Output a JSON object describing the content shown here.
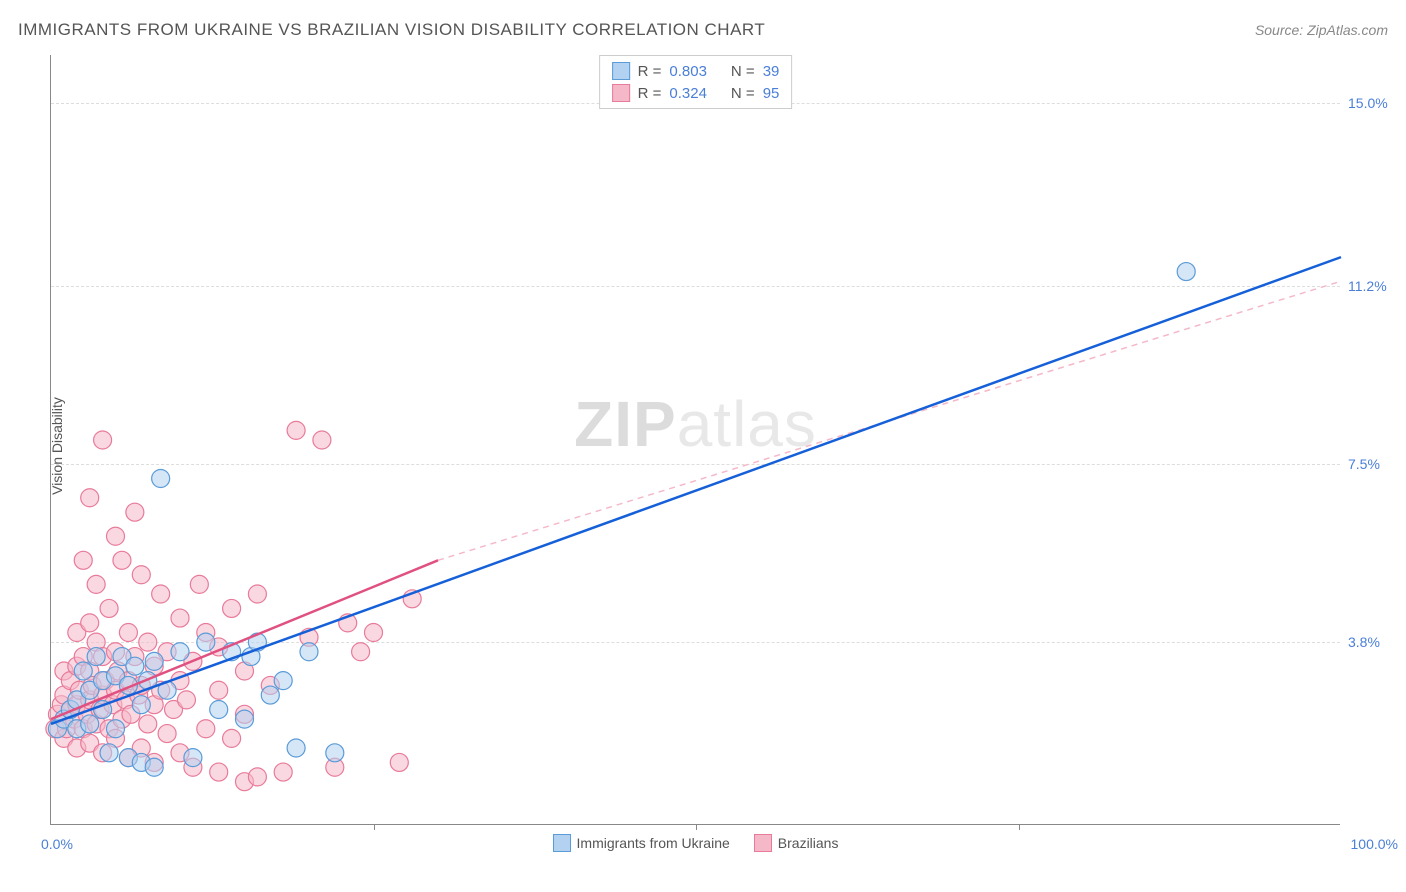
{
  "title": "IMMIGRANTS FROM UKRAINE VS BRAZILIAN VISION DISABILITY CORRELATION CHART",
  "source": "Source: ZipAtlas.com",
  "ylabel": "Vision Disability",
  "watermark_bold": "ZIP",
  "watermark_rest": "atlas",
  "chart": {
    "type": "scatter",
    "xlim": [
      0,
      100
    ],
    "ylim": [
      0,
      16
    ],
    "x_min_label": "0.0%",
    "x_max_label": "100.0%",
    "y_gridlines": [
      3.8,
      7.5,
      11.2,
      15.0
    ],
    "y_tick_labels": [
      "3.8%",
      "7.5%",
      "11.2%",
      "15.0%"
    ],
    "x_tick_marks": [
      25,
      50,
      75
    ],
    "background_color": "#ffffff",
    "grid_color": "#dddddd",
    "axis_color": "#888888",
    "tick_color": "#4a7fd8",
    "point_radius": 9,
    "series": [
      {
        "name": "Immigrants from Ukraine",
        "fill": "#b3d1f0",
        "stroke": "#5a9bd8",
        "fill_opacity": 0.55,
        "R_label": "R =",
        "R": "0.803",
        "N_label": "N =",
        "N": "39",
        "regression": {
          "x1": 0,
          "y1": 2.1,
          "x2": 100,
          "y2": 11.8,
          "color": "#1560d8",
          "width": 2.5,
          "dash": "none"
        },
        "points": [
          [
            0.5,
            2.0
          ],
          [
            1,
            2.2
          ],
          [
            1.5,
            2.4
          ],
          [
            2,
            2.0
          ],
          [
            2,
            2.6
          ],
          [
            2.5,
            3.2
          ],
          [
            3,
            2.1
          ],
          [
            3,
            2.8
          ],
          [
            3.5,
            3.5
          ],
          [
            4,
            2.4
          ],
          [
            4,
            3.0
          ],
          [
            4.5,
            1.5
          ],
          [
            5,
            2.0
          ],
          [
            5,
            3.1
          ],
          [
            5.5,
            3.5
          ],
          [
            6,
            1.4
          ],
          [
            6,
            2.9
          ],
          [
            6.5,
            3.3
          ],
          [
            7,
            1.3
          ],
          [
            7,
            2.5
          ],
          [
            7.5,
            3.0
          ],
          [
            8,
            1.2
          ],
          [
            8,
            3.4
          ],
          [
            8.5,
            7.2
          ],
          [
            9,
            2.8
          ],
          [
            10,
            3.6
          ],
          [
            11,
            1.4
          ],
          [
            12,
            3.8
          ],
          [
            13,
            2.4
          ],
          [
            14,
            3.6
          ],
          [
            15,
            2.2
          ],
          [
            15.5,
            3.5
          ],
          [
            16,
            3.8
          ],
          [
            17,
            2.7
          ],
          [
            18,
            3.0
          ],
          [
            19,
            1.6
          ],
          [
            20,
            3.6
          ],
          [
            22,
            1.5
          ],
          [
            88,
            11.5
          ]
        ]
      },
      {
        "name": "Brazilians",
        "fill": "#f5b8c8",
        "stroke": "#e87a9a",
        "fill_opacity": 0.55,
        "R_label": "R =",
        "R": "0.324",
        "N_label": "N =",
        "N": "95",
        "regression_solid": {
          "x1": 0,
          "y1": 2.2,
          "x2": 30,
          "y2": 5.5,
          "color": "#e05080",
          "width": 2.5
        },
        "regression_dash": {
          "x1": 30,
          "y1": 5.5,
          "x2": 100,
          "y2": 11.3,
          "color": "#f5b8c8",
          "width": 1.5
        },
        "points": [
          [
            0.3,
            2.0
          ],
          [
            0.5,
            2.3
          ],
          [
            0.8,
            2.5
          ],
          [
            1,
            1.8
          ],
          [
            1,
            2.7
          ],
          [
            1,
            3.2
          ],
          [
            1.2,
            2.0
          ],
          [
            1.5,
            2.4
          ],
          [
            1.5,
            3.0
          ],
          [
            1.8,
            2.2
          ],
          [
            2,
            1.6
          ],
          [
            2,
            2.5
          ],
          [
            2,
            3.3
          ],
          [
            2,
            4.0
          ],
          [
            2.2,
            2.8
          ],
          [
            2.5,
            2.0
          ],
          [
            2.5,
            3.5
          ],
          [
            2.5,
            5.5
          ],
          [
            2.8,
            2.3
          ],
          [
            3,
            1.7
          ],
          [
            3,
            2.6
          ],
          [
            3,
            3.2
          ],
          [
            3,
            4.2
          ],
          [
            3,
            6.8
          ],
          [
            3.2,
            2.9
          ],
          [
            3.5,
            2.1
          ],
          [
            3.5,
            3.8
          ],
          [
            3.5,
            5.0
          ],
          [
            3.8,
            2.4
          ],
          [
            4,
            1.5
          ],
          [
            4,
            2.7
          ],
          [
            4,
            3.5
          ],
          [
            4,
            8.0
          ],
          [
            4.2,
            3.0
          ],
          [
            4.5,
            2.0
          ],
          [
            4.5,
            4.5
          ],
          [
            4.8,
            2.5
          ],
          [
            5,
            1.8
          ],
          [
            5,
            2.8
          ],
          [
            5,
            3.6
          ],
          [
            5,
            6.0
          ],
          [
            5.2,
            3.2
          ],
          [
            5.5,
            2.2
          ],
          [
            5.5,
            5.5
          ],
          [
            5.8,
            2.6
          ],
          [
            6,
            1.4
          ],
          [
            6,
            3.0
          ],
          [
            6,
            4.0
          ],
          [
            6.2,
            2.3
          ],
          [
            6.5,
            3.5
          ],
          [
            6.5,
            6.5
          ],
          [
            6.8,
            2.7
          ],
          [
            7,
            1.6
          ],
          [
            7,
            2.9
          ],
          [
            7,
            5.2
          ],
          [
            7.5,
            2.1
          ],
          [
            7.5,
            3.8
          ],
          [
            8,
            1.3
          ],
          [
            8,
            2.5
          ],
          [
            8,
            3.3
          ],
          [
            8.5,
            2.8
          ],
          [
            8.5,
            4.8
          ],
          [
            9,
            1.9
          ],
          [
            9,
            3.6
          ],
          [
            9.5,
            2.4
          ],
          [
            10,
            1.5
          ],
          [
            10,
            3.0
          ],
          [
            10,
            4.3
          ],
          [
            10.5,
            2.6
          ],
          [
            11,
            1.2
          ],
          [
            11,
            3.4
          ],
          [
            11.5,
            5.0
          ],
          [
            12,
            2.0
          ],
          [
            12,
            4.0
          ],
          [
            13,
            1.1
          ],
          [
            13,
            2.8
          ],
          [
            13,
            3.7
          ],
          [
            14,
            1.8
          ],
          [
            14,
            4.5
          ],
          [
            15,
            0.9
          ],
          [
            15,
            2.3
          ],
          [
            15,
            3.2
          ],
          [
            16,
            1.0
          ],
          [
            16,
            4.8
          ],
          [
            17,
            2.9
          ],
          [
            18,
            1.1
          ],
          [
            19,
            8.2
          ],
          [
            20,
            3.9
          ],
          [
            21,
            8.0
          ],
          [
            22,
            1.2
          ],
          [
            23,
            4.2
          ],
          [
            24,
            3.6
          ],
          [
            25,
            4.0
          ],
          [
            27,
            1.3
          ],
          [
            28,
            4.7
          ]
        ]
      }
    ]
  },
  "legend_bottom": [
    {
      "label": "Immigrants from Ukraine",
      "fill": "#b3d1f0",
      "stroke": "#5a9bd8"
    },
    {
      "label": "Brazilians",
      "fill": "#f5b8c8",
      "stroke": "#e87a9a"
    }
  ]
}
